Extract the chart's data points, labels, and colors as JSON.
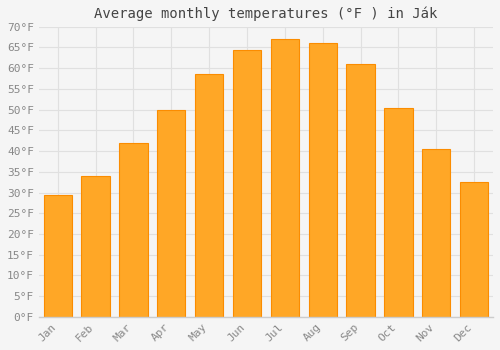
{
  "title": "Average monthly temperatures (°F ) in Ják",
  "months": [
    "Jan",
    "Feb",
    "Mar",
    "Apr",
    "May",
    "Jun",
    "Jul",
    "Aug",
    "Sep",
    "Oct",
    "Nov",
    "Dec"
  ],
  "values": [
    29.5,
    34.0,
    42.0,
    50.0,
    58.5,
    64.5,
    67.0,
    66.0,
    61.0,
    50.5,
    40.5,
    32.5
  ],
  "bar_color": "#FFA726",
  "bar_edge_color": "#FB8C00",
  "background_color": "#f5f5f5",
  "plot_bg_color": "#f5f5f5",
  "grid_color": "#e0e0e0",
  "ylim": [
    0,
    70
  ],
  "yticks": [
    0,
    5,
    10,
    15,
    20,
    25,
    30,
    35,
    40,
    45,
    50,
    55,
    60,
    65,
    70
  ],
  "title_fontsize": 10,
  "tick_fontsize": 8,
  "tick_font_color": "#888888",
  "title_color": "#444444"
}
